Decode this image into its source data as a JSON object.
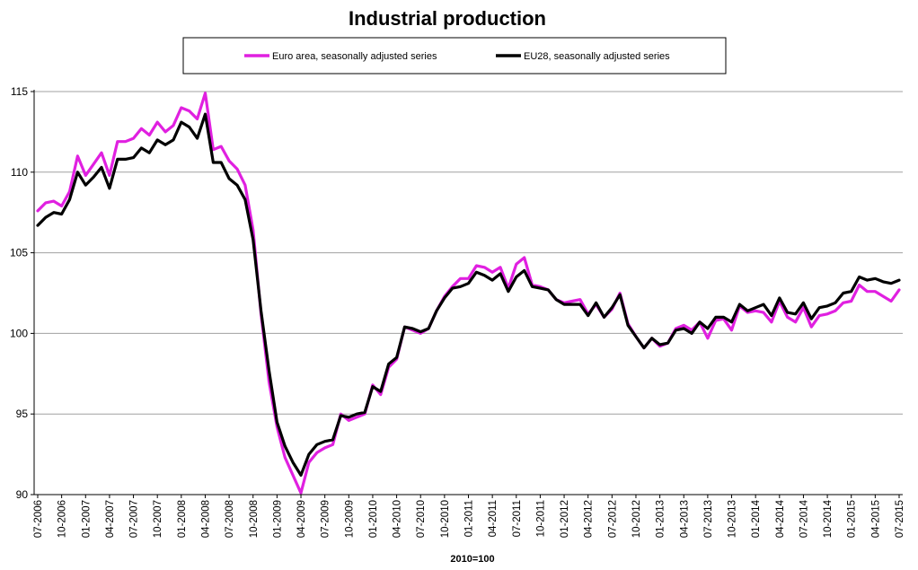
{
  "chart_data": {
    "type": "line",
    "title": "Industrial production",
    "xlabel": "2010=100",
    "ylabel": "",
    "ylim": [
      90,
      115
    ],
    "yticks": [
      90,
      95,
      100,
      105,
      110,
      115
    ],
    "grid": true,
    "legend_position": "top",
    "start_month": "07-2006",
    "x_tick_labels": [
      "07-2006",
      "10-2006",
      "01-2007",
      "04-2007",
      "07-2007",
      "10-2007",
      "01-2008",
      "04-2008",
      "07-2008",
      "10-2008",
      "01-2009",
      "04-2009",
      "07-2009",
      "10-2009",
      "01-2010",
      "04-2010",
      "07-2010",
      "10-2010",
      "01-2011",
      "04-2011",
      "07-2011",
      "10-2011",
      "01-2012",
      "04-2012",
      "07-2012",
      "10-2012",
      "01-2013",
      "04-2013",
      "07-2013",
      "10-2013",
      "01-2014",
      "04-2014",
      "07-2014",
      "10-2014",
      "01-2015",
      "04-2015",
      "07-2015"
    ],
    "series": [
      {
        "name": "Euro area, seasonally adjusted series",
        "color": "#e020e0",
        "values": [
          107.6,
          108.1,
          108.2,
          107.9,
          108.8,
          111.0,
          109.8,
          110.5,
          111.2,
          109.8,
          111.9,
          111.9,
          112.1,
          112.7,
          112.3,
          113.1,
          112.5,
          112.9,
          114.0,
          113.8,
          113.3,
          114.9,
          111.4,
          111.6,
          110.7,
          110.2,
          109.2,
          106.4,
          101.2,
          97.0,
          94.2,
          92.3,
          91.2,
          90.1,
          92.0,
          92.6,
          92.9,
          93.1,
          95.0,
          94.6,
          94.8,
          95.0,
          96.8,
          96.2,
          97.9,
          98.4,
          100.4,
          100.2,
          100.0,
          100.3,
          101.4,
          102.3,
          102.9,
          103.4,
          103.4,
          104.2,
          104.1,
          103.8,
          104.1,
          102.8,
          104.3,
          104.7,
          103.0,
          102.9,
          102.7,
          102.1,
          101.9,
          102.0,
          102.1,
          101.2,
          101.8,
          101.0,
          101.5,
          102.5,
          100.6,
          99.8,
          99.1,
          99.7,
          99.2,
          99.4,
          100.3,
          100.5,
          100.2,
          100.7,
          99.7,
          100.8,
          100.9,
          100.2,
          101.7,
          101.3,
          101.4,
          101.3,
          100.7,
          102.0,
          101.0,
          100.7,
          101.6,
          100.4,
          101.1,
          101.2,
          101.4,
          101.9,
          102.0,
          103.0,
          102.6,
          102.6,
          102.3,
          102.0,
          102.7
        ]
      },
      {
        "name": "EU28, seasonally adjusted series",
        "color": "#000000",
        "values": [
          106.7,
          107.2,
          107.5,
          107.4,
          108.3,
          110.0,
          109.2,
          109.7,
          110.3,
          109.0,
          110.8,
          110.8,
          110.9,
          111.5,
          111.2,
          112.0,
          111.7,
          112.0,
          113.1,
          112.8,
          112.1,
          113.6,
          110.6,
          110.6,
          109.6,
          109.2,
          108.3,
          105.8,
          101.4,
          97.7,
          94.5,
          93.0,
          92.0,
          91.2,
          92.5,
          93.1,
          93.3,
          93.4,
          94.9,
          94.8,
          95.0,
          95.1,
          96.7,
          96.4,
          98.1,
          98.5,
          100.4,
          100.3,
          100.1,
          100.3,
          101.4,
          102.2,
          102.8,
          102.9,
          103.1,
          103.8,
          103.6,
          103.3,
          103.7,
          102.6,
          103.5,
          103.9,
          102.9,
          102.8,
          102.7,
          102.1,
          101.8,
          101.8,
          101.8,
          101.1,
          101.9,
          101.0,
          101.6,
          102.4,
          100.5,
          99.8,
          99.1,
          99.7,
          99.3,
          99.4,
          100.2,
          100.3,
          100.0,
          100.7,
          100.3,
          101.0,
          101.0,
          100.7,
          101.8,
          101.4,
          101.6,
          101.8,
          101.1,
          102.2,
          101.3,
          101.2,
          101.9,
          100.9,
          101.6,
          101.7,
          101.9,
          102.5,
          102.6,
          103.5,
          103.3,
          103.4,
          103.2,
          103.1,
          103.3
        ]
      }
    ]
  }
}
